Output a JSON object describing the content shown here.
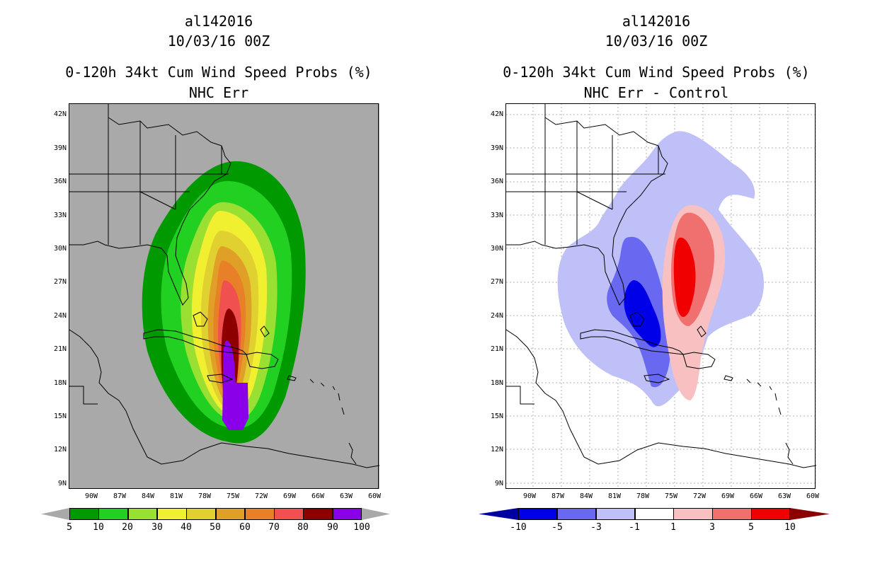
{
  "panels": [
    {
      "storm_id": "al142016",
      "date": "10/03/16 00Z",
      "title": "0-120h 34kt Cum Wind Speed Probs (%)",
      "subtitle": "NHC Err"
    },
    {
      "storm_id": "al142016",
      "date": "10/03/16 00Z",
      "title": "0-120h 34kt Cum Wind Speed Probs (%)",
      "subtitle": "NHC Err - Control"
    }
  ],
  "chart_data": [
    {
      "type": "heatmap",
      "title": "0-120h 34kt Cum Wind Speed Probs (%)",
      "subtitle": "NHC Err",
      "xlabel": "",
      "ylabel": "",
      "xlim": [
        -93,
        -60
      ],
      "ylim": [
        8.5,
        43
      ],
      "x_ticks": [
        "90W",
        "87W",
        "84W",
        "81W",
        "78W",
        "75W",
        "72W",
        "69W",
        "66W",
        "63W",
        "60W"
      ],
      "y_ticks": [
        "42N",
        "39N",
        "36N",
        "33N",
        "30N",
        "27N",
        "24N",
        "21N",
        "18N",
        "15N",
        "12N",
        "9N"
      ],
      "colorbar": {
        "labels": [
          "5",
          "10",
          "20",
          "30",
          "40",
          "50",
          "60",
          "70",
          "80",
          "90",
          "100"
        ],
        "colors": [
          "#009a00",
          "#22d022",
          "#99e033",
          "#f0f030",
          "#e0d030",
          "#e0a028",
          "#e88028",
          "#f05050",
          "#8c0000",
          "#8a00e8"
        ]
      }
    },
    {
      "type": "heatmap",
      "title": "0-120h 34kt Cum Wind Speed Probs (%)",
      "subtitle": "NHC Err - Control",
      "xlabel": "",
      "ylabel": "",
      "xlim": [
        -93,
        -60
      ],
      "ylim": [
        8.5,
        43
      ],
      "x_ticks": [
        "90W",
        "87W",
        "84W",
        "81W",
        "78W",
        "75W",
        "72W",
        "69W",
        "66W",
        "63W",
        "60W"
      ],
      "y_ticks": [
        "42N",
        "39N",
        "36N",
        "33N",
        "30N",
        "27N",
        "24N",
        "21N",
        "18N",
        "15N",
        "12N",
        "9N"
      ],
      "colorbar": {
        "labels": [
          "-10",
          "-5",
          "-3",
          "-1",
          "1",
          "3",
          "5",
          "10"
        ],
        "colors": [
          "#0000a0",
          "#0000e8",
          "#6868f0",
          "#c0c0f8",
          "#ffffff",
          "#f8c0c0",
          "#f07070",
          "#f00000",
          "#8c0000"
        ]
      }
    }
  ]
}
